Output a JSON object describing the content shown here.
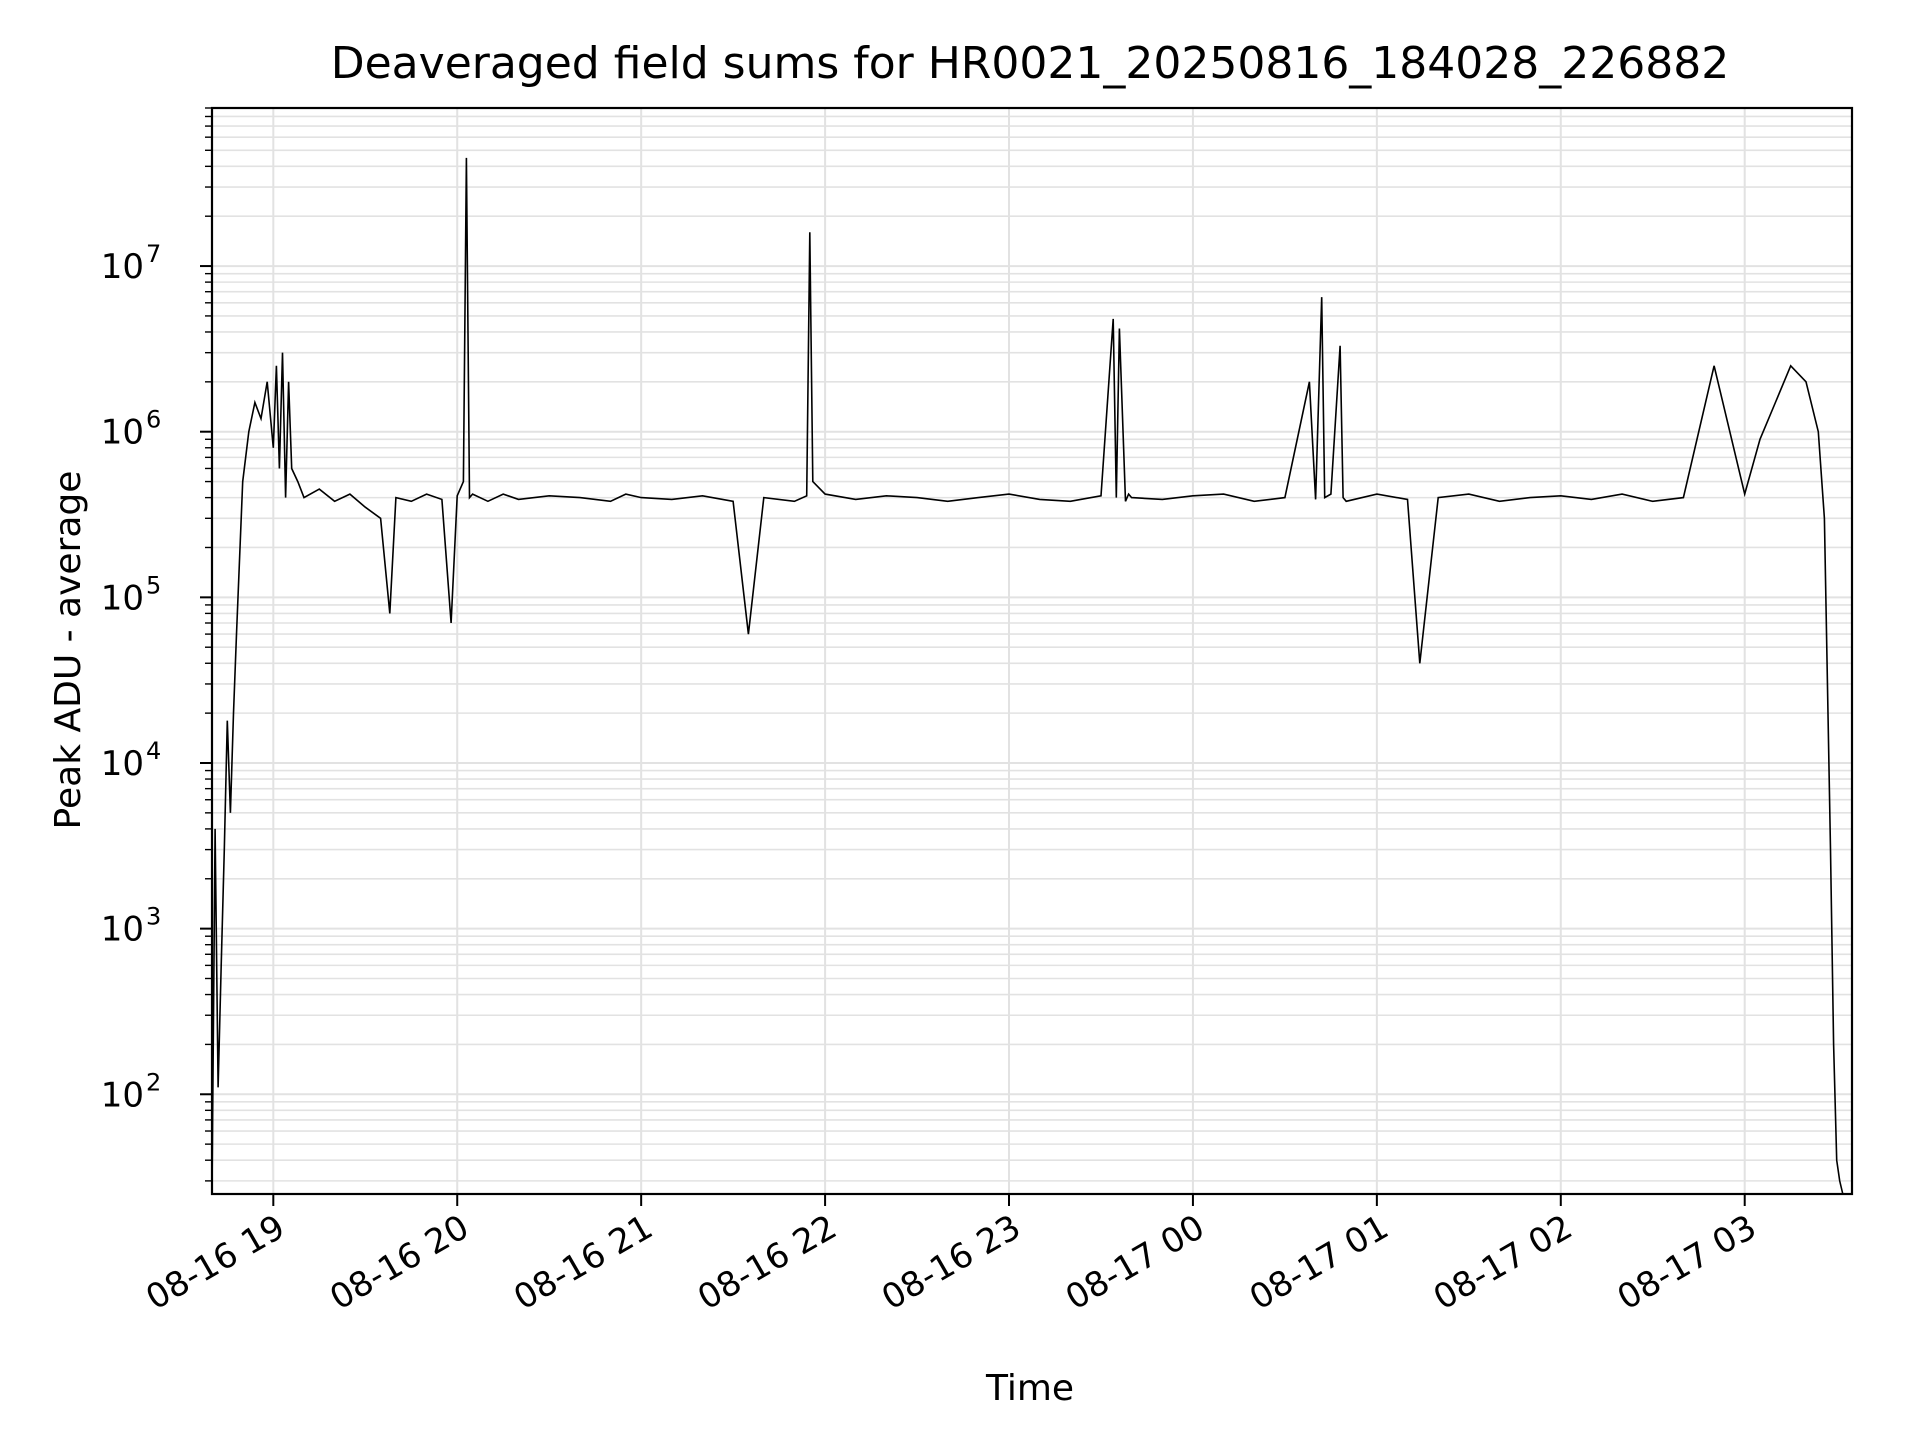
{
  "chart_data": {
    "type": "line",
    "title": "Deaveraged field sums for HR0021_20250816_184028_226882",
    "xlabel": "Time",
    "ylabel": "Peak ADU - average",
    "yscale": "log",
    "ylim": [
      25,
      90000000
    ],
    "xlim": [
      "2025-08-16 18:40",
      "2025-08-17 03:35"
    ],
    "x_ticks": [
      "08-16 19",
      "08-16 20",
      "08-16 21",
      "08-16 22",
      "08-16 23",
      "08-17 00",
      "08-17 01",
      "08-17 02",
      "08-17 03"
    ],
    "y_ticks": [
      {
        "base": "10",
        "exp": "2"
      },
      {
        "base": "10",
        "exp": "3"
      },
      {
        "base": "10",
        "exp": "4"
      },
      {
        "base": "10",
        "exp": "5"
      },
      {
        "base": "10",
        "exp": "6"
      },
      {
        "base": "10",
        "exp": "7"
      }
    ],
    "grid": true,
    "line_color": "#000000",
    "series": [
      {
        "x": [
          "2025-08-16 18:40",
          "2025-08-16 18:41",
          "2025-08-16 18:42",
          "2025-08-16 18:43",
          "2025-08-16 18:44",
          "2025-08-16 18:45",
          "2025-08-16 18:46",
          "2025-08-16 18:47",
          "2025-08-16 18:48",
          "2025-08-16 18:50",
          "2025-08-16 18:52",
          "2025-08-16 18:54",
          "2025-08-16 18:56",
          "2025-08-16 18:58",
          "2025-08-16 19:00",
          "2025-08-16 19:01",
          "2025-08-16 19:02",
          "2025-08-16 19:03",
          "2025-08-16 19:04",
          "2025-08-16 19:05",
          "2025-08-16 19:06",
          "2025-08-16 19:08",
          "2025-08-16 19:10",
          "2025-08-16 19:15",
          "2025-08-16 19:20",
          "2025-08-16 19:25",
          "2025-08-16 19:30",
          "2025-08-16 19:35",
          "2025-08-16 19:38",
          "2025-08-16 19:40",
          "2025-08-16 19:45",
          "2025-08-16 19:50",
          "2025-08-16 19:55",
          "2025-08-16 19:58",
          "2025-08-16 20:00",
          "2025-08-16 20:02",
          "2025-08-16 20:03",
          "2025-08-16 20:04",
          "2025-08-16 20:05",
          "2025-08-16 20:10",
          "2025-08-16 20:15",
          "2025-08-16 20:20",
          "2025-08-16 20:30",
          "2025-08-16 20:40",
          "2025-08-16 20:50",
          "2025-08-16 20:55",
          "2025-08-16 21:00",
          "2025-08-16 21:10",
          "2025-08-16 21:20",
          "2025-08-16 21:30",
          "2025-08-16 21:35",
          "2025-08-16 21:40",
          "2025-08-16 21:50",
          "2025-08-16 21:54",
          "2025-08-16 21:55",
          "2025-08-16 21:56",
          "2025-08-16 22:00",
          "2025-08-16 22:10",
          "2025-08-16 22:20",
          "2025-08-16 22:30",
          "2025-08-16 22:40",
          "2025-08-16 22:50",
          "2025-08-16 23:00",
          "2025-08-16 23:10",
          "2025-08-16 23:20",
          "2025-08-16 23:30",
          "2025-08-16 23:34",
          "2025-08-16 23:35",
          "2025-08-16 23:36",
          "2025-08-16 23:38",
          "2025-08-16 23:39",
          "2025-08-16 23:40",
          "2025-08-16 23:50",
          "2025-08-17 00:00",
          "2025-08-17 00:10",
          "2025-08-17 00:20",
          "2025-08-17 00:30",
          "2025-08-17 00:38",
          "2025-08-17 00:40",
          "2025-08-17 00:42",
          "2025-08-17 00:43",
          "2025-08-17 00:45",
          "2025-08-17 00:48",
          "2025-08-17 00:49",
          "2025-08-17 00:50",
          "2025-08-17 01:00",
          "2025-08-17 01:10",
          "2025-08-17 01:14",
          "2025-08-17 01:20",
          "2025-08-17 01:30",
          "2025-08-17 01:40",
          "2025-08-17 01:50",
          "2025-08-17 02:00",
          "2025-08-17 02:10",
          "2025-08-17 02:20",
          "2025-08-17 02:30",
          "2025-08-17 02:40",
          "2025-08-17 02:50",
          "2025-08-17 03:00",
          "2025-08-17 03:05",
          "2025-08-17 03:10",
          "2025-08-17 03:15",
          "2025-08-17 03:20",
          "2025-08-17 03:24",
          "2025-08-17 03:26",
          "2025-08-17 03:28",
          "2025-08-17 03:29",
          "2025-08-17 03:30",
          "2025-08-17 03:31",
          "2025-08-17 03:32"
        ],
        "y": [
          25,
          4000,
          110,
          600,
          3000,
          18000,
          5000,
          20000,
          60000,
          500000,
          1000000,
          1500000,
          1200000,
          2000000,
          800000,
          2500000,
          600000,
          3000000,
          400000,
          2000000,
          600000,
          500000,
          400000,
          450000,
          380000,
          420000,
          350000,
          300000,
          80000,
          400000,
          380000,
          420000,
          390000,
          70000,
          410000,
          500000,
          45000000,
          400000,
          420000,
          380000,
          420000,
          390000,
          410000,
          400000,
          380000,
          420000,
          400000,
          390000,
          410000,
          380000,
          60000,
          400000,
          380000,
          410000,
          16000000,
          500000,
          420000,
          390000,
          410000,
          400000,
          380000,
          400000,
          420000,
          390000,
          380000,
          410000,
          4800000,
          400000,
          4200000,
          380000,
          420000,
          400000,
          390000,
          410000,
          420000,
          380000,
          400000,
          2000000,
          390000,
          6500000,
          400000,
          420000,
          3300000,
          400000,
          380000,
          420000,
          390000,
          40000,
          400000,
          420000,
          380000,
          400000,
          410000,
          390000,
          420000,
          380000,
          400000,
          2500000,
          420000,
          900000,
          1500000,
          2500000,
          2000000,
          1000000,
          300000,
          3000,
          200,
          40,
          30,
          25
        ]
      }
    ]
  }
}
